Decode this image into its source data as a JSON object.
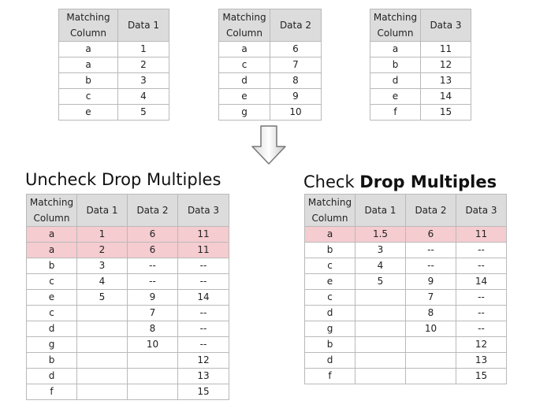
{
  "source_tables": [
    {
      "headers": [
        "Matching Column",
        "Data 1"
      ],
      "rows": [
        [
          "a",
          "1"
        ],
        [
          "a",
          "2"
        ],
        [
          "b",
          "3"
        ],
        [
          "c",
          "4"
        ],
        [
          "e",
          "5"
        ]
      ]
    },
    {
      "headers": [
        "Matching Column",
        "Data 2"
      ],
      "rows": [
        [
          "a",
          "6"
        ],
        [
          "c",
          "7"
        ],
        [
          "d",
          "8"
        ],
        [
          "e",
          "9"
        ],
        [
          "g",
          "10"
        ]
      ]
    },
    {
      "headers": [
        "Matching Column",
        "Data 3"
      ],
      "rows": [
        [
          "a",
          "11"
        ],
        [
          "b",
          "12"
        ],
        [
          "d",
          "13"
        ],
        [
          "e",
          "14"
        ],
        [
          "f",
          "15"
        ]
      ]
    }
  ],
  "arrow_icon": "down-arrow-icon",
  "highlight_color": "#f5ccd0",
  "result_left": {
    "heading": "Uncheck Drop Multiples",
    "headers": [
      "Matching Column",
      "Data 1",
      "Data 2",
      "Data 3"
    ],
    "rows": [
      [
        "a",
        "1",
        "6",
        "11"
      ],
      [
        "a",
        "2",
        "6",
        "11"
      ],
      [
        "b",
        "3",
        "--",
        "--"
      ],
      [
        "c",
        "4",
        "--",
        "--"
      ],
      [
        "e",
        "5",
        "9",
        "14"
      ],
      [
        "c",
        "",
        "7",
        "--"
      ],
      [
        "d",
        "",
        "8",
        "--"
      ],
      [
        "g",
        "",
        "10",
        "--"
      ],
      [
        "b",
        "",
        "",
        "12"
      ],
      [
        "d",
        "",
        "",
        "13"
      ],
      [
        "f",
        "",
        "",
        "15"
      ]
    ],
    "highlighted_rows": [
      0,
      1
    ]
  },
  "result_right": {
    "heading_prefix": "Check ",
    "heading_bold": "Drop Multiples",
    "headers": [
      "Matching Column",
      "Data 1",
      "Data 2",
      "Data 3"
    ],
    "rows": [
      [
        "a",
        "1.5",
        "6",
        "11"
      ],
      [
        "b",
        "3",
        "--",
        "--"
      ],
      [
        "c",
        "4",
        "--",
        "--"
      ],
      [
        "e",
        "5",
        "9",
        "14"
      ],
      [
        "c",
        "",
        "7",
        "--"
      ],
      [
        "d",
        "",
        "8",
        "--"
      ],
      [
        "g",
        "",
        "10",
        "--"
      ],
      [
        "b",
        "",
        "",
        "12"
      ],
      [
        "d",
        "",
        "",
        "13"
      ],
      [
        "f",
        "",
        "",
        "15"
      ]
    ],
    "highlighted_rows": [
      0
    ]
  }
}
